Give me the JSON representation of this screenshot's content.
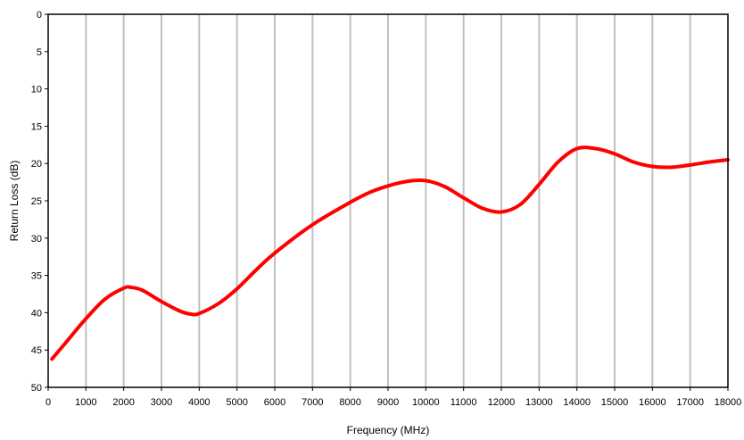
{
  "chart_data": {
    "type": "line",
    "title": "",
    "xlabel": "Frequency (MHz)",
    "ylabel": "Return Loss (dB)",
    "xlim": [
      0,
      18000
    ],
    "ylim": [
      0,
      50
    ],
    "y_inverted": true,
    "grid": "vertical",
    "legend": "none",
    "xticks": [
      0,
      1000,
      2000,
      3000,
      4000,
      5000,
      6000,
      7000,
      8000,
      9000,
      10000,
      11000,
      12000,
      13000,
      14000,
      15000,
      16000,
      17000,
      18000
    ],
    "yticks": [
      0,
      5,
      10,
      15,
      20,
      25,
      30,
      35,
      40,
      45,
      50
    ],
    "colors": {
      "series": "#ff0000",
      "grid": "#c0c0c0",
      "axis": "#000000"
    },
    "series": [
      {
        "x": [
          100,
          500,
          1000,
          1500,
          2000,
          2200,
          2500,
          3000,
          3500,
          3800,
          4000,
          4500,
          5000,
          5500,
          6000,
          7000,
          8000,
          8500,
          9000,
          9500,
          10000,
          10500,
          11000,
          11500,
          12000,
          12500,
          13000,
          13500,
          14000,
          14500,
          15000,
          15500,
          16000,
          16500,
          17000,
          17500,
          18000
        ],
        "values": [
          46.2,
          43.8,
          40.8,
          38.2,
          36.7,
          36.6,
          37.0,
          38.5,
          39.8,
          40.2,
          40.1,
          38.8,
          36.8,
          34.3,
          32.0,
          28.2,
          25.2,
          23.9,
          23.0,
          22.4,
          22.3,
          23.1,
          24.6,
          26.0,
          26.5,
          25.5,
          22.8,
          19.8,
          18.0,
          18.0,
          18.7,
          19.8,
          20.4,
          20.5,
          20.2,
          19.8,
          19.5
        ]
      }
    ]
  }
}
